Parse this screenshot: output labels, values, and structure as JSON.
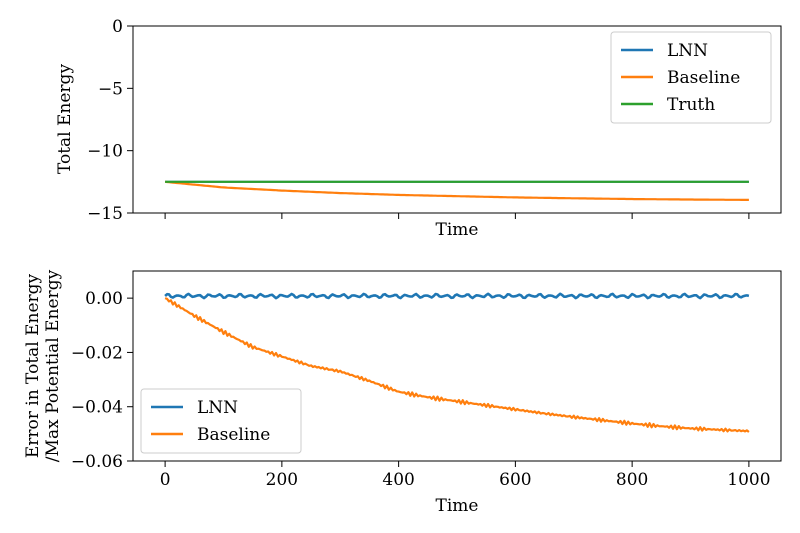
{
  "chart_data": [
    {
      "type": "line",
      "title": "",
      "xlabel": "Time",
      "ylabel": "Total Energy",
      "xlim": [
        -55,
        1055
      ],
      "ylim": [
        -15,
        0
      ],
      "yticks": [
        0,
        -5,
        -10,
        -15
      ],
      "ytick_labels": [
        "0",
        "−5",
        "−10",
        "−15"
      ],
      "xticks": [
        0,
        200,
        400,
        600,
        800,
        1000
      ],
      "xtick_labels_visible": false,
      "grid": false,
      "legend": "top-right",
      "series": [
        {
          "name": "LNN",
          "color": "#1f77b4",
          "x": [
            0,
            100,
            200,
            300,
            400,
            500,
            600,
            700,
            800,
            900,
            1000
          ],
          "y": [
            -12.5,
            -12.5,
            -12.5,
            -12.5,
            -12.5,
            -12.5,
            -12.5,
            -12.5,
            -12.5,
            -12.5,
            -12.5
          ]
        },
        {
          "name": "Baseline",
          "color": "#ff7f0e",
          "x": [
            0,
            100,
            200,
            300,
            400,
            500,
            600,
            700,
            800,
            900,
            1000
          ],
          "y": [
            -12.5,
            -12.95,
            -13.2,
            -13.4,
            -13.55,
            -13.65,
            -13.75,
            -13.82,
            -13.88,
            -13.92,
            -13.95
          ]
        },
        {
          "name": "Truth",
          "color": "#2ca02c",
          "x": [
            0,
            1000
          ],
          "y": [
            -12.5,
            -12.5
          ]
        }
      ]
    },
    {
      "type": "line",
      "title": "",
      "xlabel": "Time",
      "ylabel": "Error in Total Energy\n/Max Potential Energy",
      "ylabel_lines": [
        "Error in Total Energy",
        "/Max Potential Energy"
      ],
      "xlim": [
        -55,
        1055
      ],
      "ylim": [
        -0.06,
        0.01
      ],
      "yticks": [
        0.0,
        -0.02,
        -0.04,
        -0.06
      ],
      "ytick_labels": [
        "0.00",
        "−0.02",
        "−0.04",
        "−0.06"
      ],
      "xticks": [
        0,
        200,
        400,
        600,
        800,
        1000
      ],
      "xtick_labels": [
        "0",
        "200",
        "400",
        "600",
        "800",
        "1000"
      ],
      "grid": false,
      "legend": "bottom-left",
      "series": [
        {
          "name": "LNN",
          "color": "#1f77b4",
          "x": [
            0,
            1000
          ],
          "y": [
            0.0008,
            0.0008
          ]
        },
        {
          "name": "Baseline",
          "color": "#ff7f0e",
          "x": [
            0,
            50,
            100,
            150,
            200,
            250,
            300,
            350,
            400,
            450,
            500,
            550,
            600,
            650,
            700,
            750,
            800,
            850,
            900,
            950,
            1000
          ],
          "y": [
            0.0,
            -0.0065,
            -0.0125,
            -0.018,
            -0.0215,
            -0.025,
            -0.027,
            -0.0305,
            -0.0345,
            -0.0365,
            -0.038,
            -0.0395,
            -0.041,
            -0.0425,
            -0.0438,
            -0.045,
            -0.0462,
            -0.0472,
            -0.048,
            -0.0485,
            -0.049
          ]
        }
      ]
    }
  ]
}
